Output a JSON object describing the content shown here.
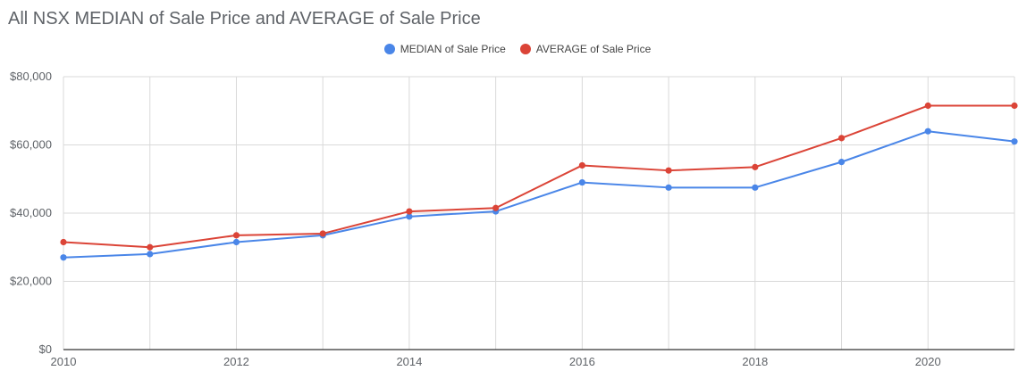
{
  "chart_data": {
    "type": "line",
    "title": "All NSX MEDIAN of Sale Price and AVERAGE of Sale Price",
    "xlabel": "",
    "ylabel": "",
    "x": [
      2010,
      2011,
      2012,
      2013,
      2014,
      2015,
      2016,
      2017,
      2018,
      2019,
      2020,
      2021
    ],
    "xlim": [
      2010,
      2021
    ],
    "ylim": [
      0,
      80000
    ],
    "x_ticks": [
      2010,
      2012,
      2014,
      2016,
      2018,
      2020
    ],
    "x_tick_labels": [
      "2010",
      "2012",
      "2014",
      "2016",
      "2018",
      "2020"
    ],
    "y_ticks": [
      0,
      20000,
      40000,
      60000,
      80000
    ],
    "y_tick_labels": [
      "$0",
      "$20,000",
      "$40,000",
      "$60,000",
      "$80,000"
    ],
    "grid": true,
    "legend_position": "top-center",
    "series": [
      {
        "name": "MEDIAN of Sale Price",
        "color": "#4a86e8",
        "values": [
          27000,
          28000,
          31500,
          33500,
          39000,
          40500,
          49000,
          47500,
          47500,
          55000,
          64000,
          61000
        ]
      },
      {
        "name": "AVERAGE of Sale Price",
        "color": "#db4437",
        "values": [
          31500,
          30000,
          33500,
          34000,
          40500,
          41500,
          54000,
          52500,
          53500,
          62000,
          71500,
          71500
        ]
      }
    ]
  }
}
